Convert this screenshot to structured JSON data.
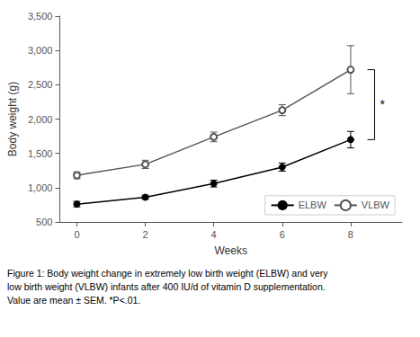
{
  "chart_data": {
    "type": "line",
    "x": [
      0,
      2,
      4,
      6,
      8
    ],
    "series": [
      {
        "name": "ELBW",
        "color": "#000000",
        "marker": "filled_circle",
        "values": [
          760,
          860,
          1060,
          1300,
          1700
        ],
        "errors": [
          40,
          30,
          50,
          60,
          120
        ]
      },
      {
        "name": "VLBW",
        "color": "#555555",
        "marker": "open_circle",
        "values": [
          1180,
          1340,
          1740,
          2130,
          2720
        ],
        "errors": [
          50,
          60,
          70,
          80,
          350
        ]
      }
    ],
    "xlabel": "Weeks",
    "ylabel": "Body weight (g)",
    "xlim": [
      -0.5,
      9.5
    ],
    "xticks": [
      0,
      2,
      4,
      6,
      8
    ],
    "ylim": [
      500,
      3500
    ],
    "yticks": [
      500,
      1000,
      1500,
      2000,
      2500,
      3000,
      3500
    ],
    "grid": false,
    "legend": "lower right",
    "annotations": [
      {
        "text": "*",
        "x": 8.7,
        "y": [
          1700,
          2720
        ]
      }
    ],
    "caption": "Figure 1: Body weight change in extremely low birth weight (ELBW) and very\nlow birth weight (VLBW) infants after 400 IU/d of vitamin D supplementation.\nValue are mean ± SEM. *P<.01."
  }
}
